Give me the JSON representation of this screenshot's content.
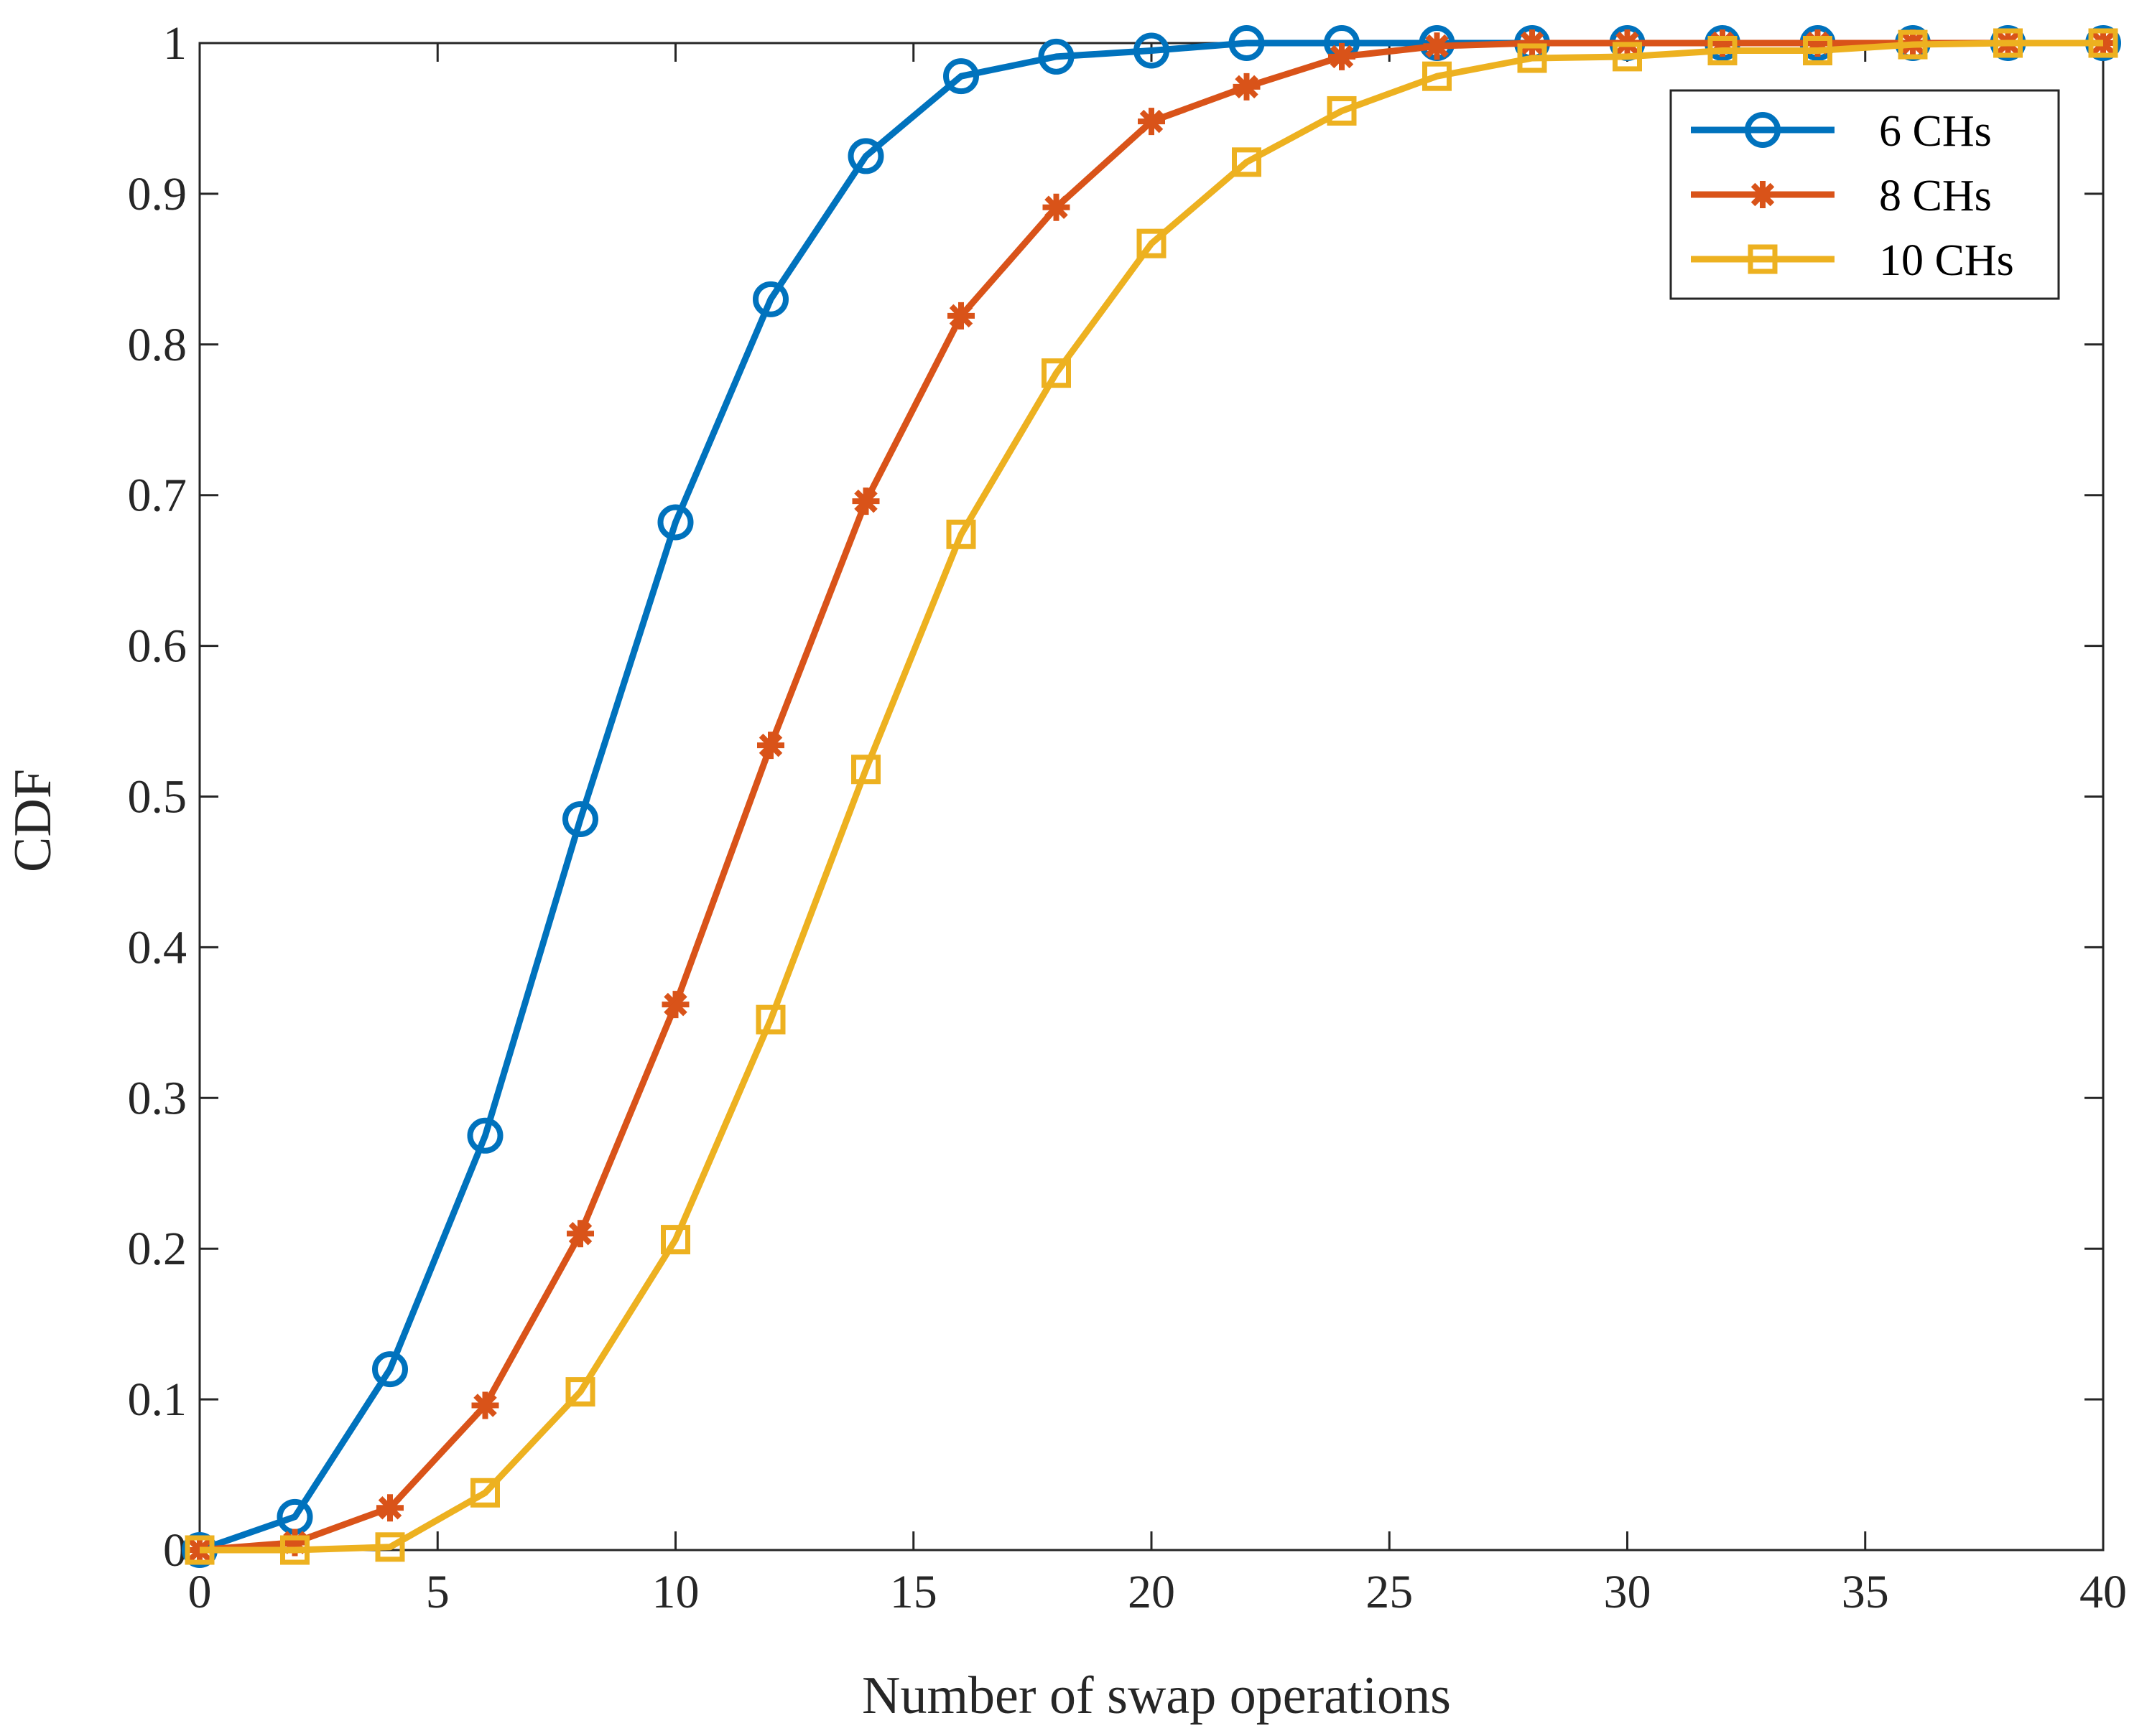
{
  "chart_data": {
    "type": "line",
    "title": "",
    "xlabel": "Number of swap operations",
    "ylabel": "CDF",
    "xlim": [
      0,
      40
    ],
    "ylim": [
      0,
      1
    ],
    "xticks": [
      0,
      5,
      10,
      15,
      20,
      25,
      30,
      35,
      40
    ],
    "yticks": [
      0,
      0.1,
      0.2,
      0.3,
      0.4,
      0.5,
      0.6,
      0.7,
      0.8,
      0.9,
      1
    ],
    "xtick_labels": [
      "0",
      "5",
      "10",
      "15",
      "20",
      "25",
      "30",
      "35",
      "40"
    ],
    "ytick_labels": [
      "0",
      "0.1",
      "0.2",
      "0.3",
      "0.4",
      "0.5",
      "0.6",
      "0.7",
      "0.8",
      "0.9",
      "1"
    ],
    "grid": false,
    "legend_position": "top-right",
    "x": [
      0,
      2,
      4,
      6,
      8,
      10,
      12,
      14,
      16,
      18,
      20,
      22,
      24,
      26,
      28,
      30,
      32,
      34,
      36,
      38,
      40
    ],
    "series": [
      {
        "name": "6 CHs",
        "color": "#0072BD",
        "marker": "circle",
        "values": [
          0,
          0.022,
          0.12,
          0.275,
          0.485,
          0.682,
          0.83,
          0.925,
          0.978,
          0.991,
          0.995,
          1,
          1,
          1,
          1,
          1,
          1,
          1,
          1,
          1,
          1
        ]
      },
      {
        "name": "8 CHs",
        "color": "#D95319",
        "marker": "asterisk",
        "values": [
          0,
          0.005,
          0.028,
          0.096,
          0.21,
          0.362,
          0.534,
          0.696,
          0.819,
          0.891,
          0.948,
          0.971,
          0.991,
          0.998,
          1,
          1,
          1,
          1,
          1,
          1,
          1
        ]
      },
      {
        "name": "10 CHs",
        "color": "#EDB120",
        "marker": "square",
        "values": [
          0,
          0,
          0.002,
          0.038,
          0.105,
          0.206,
          0.352,
          0.518,
          0.674,
          0.781,
          0.867,
          0.921,
          0.955,
          0.978,
          0.99,
          0.991,
          0.995,
          0.995,
          0.999,
          1,
          1
        ]
      }
    ]
  }
}
